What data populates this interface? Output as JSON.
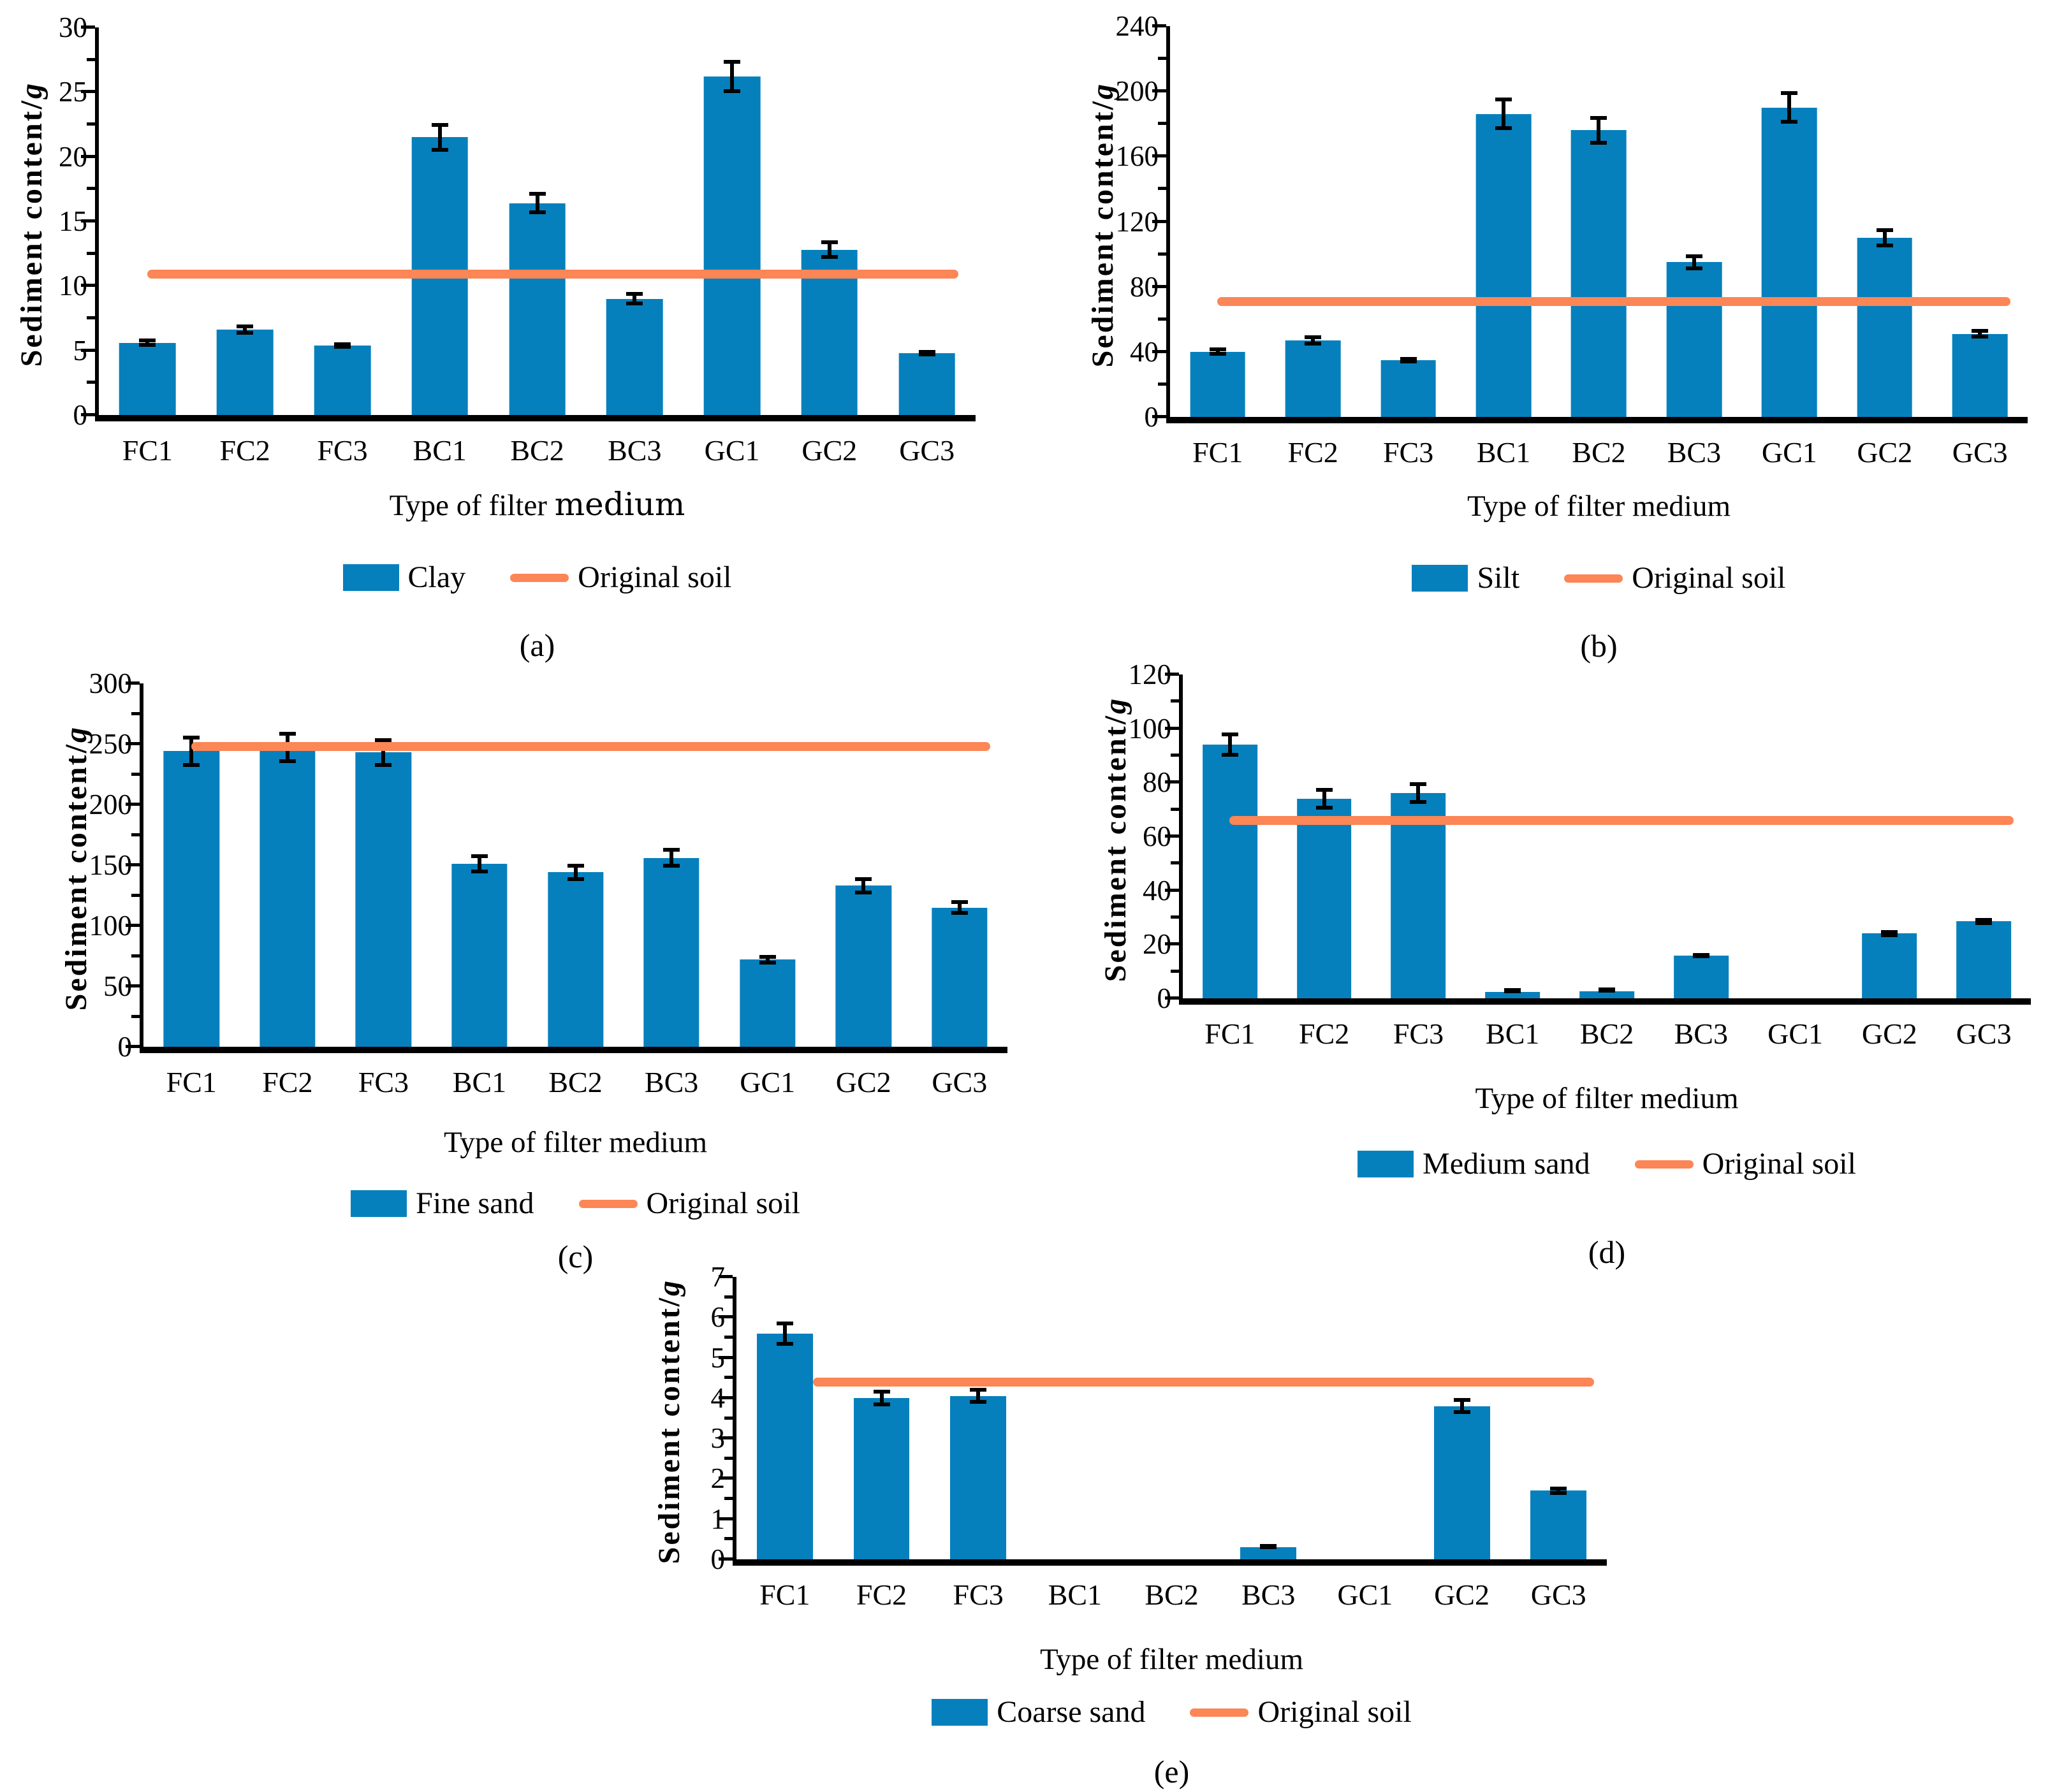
{
  "figure": {
    "ylabel": "Sediment content/g",
    "xlabel": "Type of filter medium",
    "categories": [
      "FC1",
      "FC2",
      "FC3",
      "BC1",
      "BC2",
      "BC3",
      "GC1",
      "GC2",
      "GC3"
    ],
    "line_series_label": "Original soil"
  },
  "colors": {
    "bar": "#0680BC",
    "original_soil_line": "#FC8656",
    "axis": "#000000",
    "text": "#000000",
    "background": "#FFFFFF"
  },
  "chart_data": [
    {
      "type": "bar",
      "panel_label": "(a)",
      "title": "",
      "xlabel": "Type of filter medium",
      "xlabel_parts": [
        "Type of filter ",
        "medium"
      ],
      "ylabel": "Sediment content/g",
      "categories": [
        "FC1",
        "FC2",
        "FC3",
        "BC1",
        "BC2",
        "BC3",
        "GC1",
        "GC2",
        "GC3"
      ],
      "series": [
        {
          "name": "Clay",
          "type": "bar",
          "values": [
            5.6,
            6.6,
            5.4,
            21.5,
            16.4,
            9.0,
            26.2,
            12.8,
            4.8
          ],
          "errors": [
            0.3,
            0.4,
            0.25,
            1.1,
            0.85,
            0.5,
            1.3,
            0.7,
            0.25
          ]
        },
        {
          "name": "Original soil",
          "type": "line",
          "value": 10.9
        }
      ],
      "ylim": [
        0,
        30
      ],
      "yticks": [
        0,
        5,
        10,
        15,
        20,
        25,
        30
      ],
      "grid": false,
      "legend_position": "bottom"
    },
    {
      "type": "bar",
      "panel_label": "(b)",
      "title": "",
      "xlabel": "Type of filter medium",
      "ylabel": "Sediment content/g",
      "categories": [
        "FC1",
        "FC2",
        "FC3",
        "BC1",
        "BC2",
        "BC3",
        "GC1",
        "GC2",
        "GC3"
      ],
      "series": [
        {
          "name": "Silt",
          "type": "bar",
          "values": [
            40,
            47,
            35,
            186,
            176,
            95,
            190,
            110,
            51
          ],
          "errors": [
            2.5,
            3,
            2,
            10,
            9,
            5,
            10,
            6,
            3
          ]
        },
        {
          "name": "Original soil",
          "type": "line",
          "value": 71
        }
      ],
      "ylim": [
        0,
        240
      ],
      "yticks": [
        0,
        40,
        80,
        120,
        160,
        200,
        240
      ],
      "grid": false,
      "legend_position": "bottom"
    },
    {
      "type": "bar",
      "panel_label": "(c)",
      "title": "",
      "xlabel": "Type of filter medium",
      "ylabel": "Sediment content/g",
      "categories": [
        "FC1",
        "FC2",
        "FC3",
        "BC1",
        "BC2",
        "BC3",
        "GC1",
        "GC2",
        "GC3"
      ],
      "series": [
        {
          "name": "Fine sand",
          "type": "bar",
          "values": [
            244,
            247,
            243,
            151,
            144,
            156,
            72,
            133,
            115
          ],
          "errors": [
            13,
            13,
            12,
            8,
            7,
            8,
            4,
            7,
            6
          ]
        },
        {
          "name": "Original soil",
          "type": "line",
          "value": 248
        }
      ],
      "ylim": [
        0,
        300
      ],
      "yticks": [
        0,
        50,
        100,
        150,
        200,
        250,
        300
      ],
      "grid": false,
      "legend_position": "bottom"
    },
    {
      "type": "bar",
      "panel_label": "(d)",
      "title": "",
      "xlabel": "Type of filter medium",
      "ylabel": "Sediment content/g",
      "categories": [
        "FC1",
        "FC2",
        "FC3",
        "BC1",
        "BC2",
        "BC3",
        "GC1",
        "GC2",
        "GC3"
      ],
      "series": [
        {
          "name": "Medium sand",
          "type": "bar",
          "values": [
            94,
            74,
            76,
            2.3,
            2.6,
            15.8,
            0,
            24,
            28.5
          ],
          "errors": [
            4.5,
            4,
            4,
            0.4,
            0.4,
            0.8,
            0,
            1.3,
            1.3
          ]
        },
        {
          "name": "Original soil",
          "type": "line",
          "value": 66
        }
      ],
      "ylim": [
        0,
        120
      ],
      "yticks": [
        0,
        20,
        40,
        60,
        80,
        100,
        120
      ],
      "grid": false,
      "legend_position": "bottom"
    },
    {
      "type": "bar",
      "panel_label": "(e)",
      "title": "",
      "xlabel": "Type of filter medium",
      "ylabel": "Sediment content/g",
      "categories": [
        "FC1",
        "FC2",
        "FC3",
        "BC1",
        "BC2",
        "BC3",
        "GC1",
        "GC2",
        "GC3"
      ],
      "series": [
        {
          "name": "Coarse sand",
          "type": "bar",
          "values": [
            5.6,
            4.0,
            4.05,
            0,
            0,
            0.3,
            0,
            3.8,
            1.7
          ],
          "errors": [
            0.3,
            0.2,
            0.2,
            0,
            0,
            0.05,
            0,
            0.2,
            0.1
          ]
        },
        {
          "name": "Original soil",
          "type": "line",
          "value": 4.4
        }
      ],
      "ylim": [
        0,
        7
      ],
      "yticks": [
        0,
        1,
        2,
        3,
        4,
        5,
        6,
        7
      ],
      "grid": false,
      "legend_position": "bottom"
    }
  ]
}
